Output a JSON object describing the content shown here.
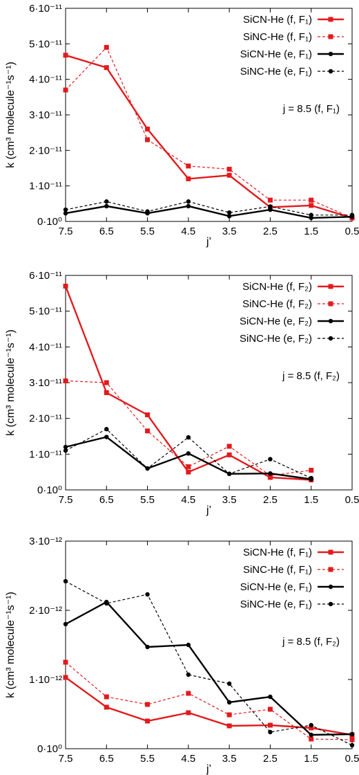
{
  "chart_data": [
    {
      "type": "line",
      "xlabel": "j’",
      "ylabel": "k (cm³ molecule⁻¹s⁻¹)",
      "x_ticks": [
        "7.5",
        "6.5",
        "5.5",
        "4.5",
        "3.5",
        "2.5",
        "1.5",
        "0.5"
      ],
      "y_ticks": [
        "0·10⁰",
        "1·10⁻¹¹",
        "2·10⁻¹¹",
        "3·10⁻¹¹",
        "4·10⁻¹¹",
        "5·10⁻¹¹",
        "6·10⁻¹¹"
      ],
      "ylim": [
        0,
        6
      ],
      "x_order": [
        7.5,
        6.5,
        5.5,
        4.5,
        3.5,
        2.5,
        1.5,
        0.5
      ],
      "annotation": "j = 8.5 (f, F₁)",
      "legend_placement": "top-right",
      "series": [
        {
          "name": "SiCN-He (f, F₁)",
          "color": "#e31a1c",
          "dash": false,
          "marker": "square",
          "x": [
            7.5,
            6.5,
            5.5,
            4.5,
            3.5,
            2.5,
            1.5,
            0.5
          ],
          "y": [
            4.68,
            4.33,
            2.6,
            1.2,
            1.3,
            0.4,
            0.45,
            0.1
          ]
        },
        {
          "name": "SiNC-He (f, F₁)",
          "color": "#e31a1c",
          "dash": true,
          "marker": "square",
          "x": [
            7.5,
            6.5,
            5.5,
            4.5,
            3.5,
            2.5,
            1.5,
            0.5
          ],
          "y": [
            3.7,
            4.9,
            2.3,
            1.56,
            1.47,
            0.6,
            0.6,
            0.1
          ]
        },
        {
          "name": "SiCN-He (e, F₁)",
          "color": "#000000",
          "dash": false,
          "marker": "circle",
          "x": [
            7.5,
            6.5,
            5.5,
            4.5,
            3.5,
            2.5,
            1.5,
            0.5
          ],
          "y": [
            0.23,
            0.43,
            0.23,
            0.43,
            0.15,
            0.33,
            0.1,
            0.13
          ]
        },
        {
          "name": "SiNC-He (e, F₁)",
          "color": "#000000",
          "dash": true,
          "marker": "circle",
          "x": [
            7.5,
            6.5,
            5.5,
            4.5,
            3.5,
            2.5,
            1.5,
            0.5
          ],
          "y": [
            0.33,
            0.56,
            0.28,
            0.56,
            0.25,
            0.42,
            0.18,
            0.18
          ]
        }
      ]
    },
    {
      "type": "line",
      "xlabel": "j’",
      "ylabel": "k (cm³ molecule⁻¹s⁻¹)",
      "x_ticks": [
        "7.5",
        "6.5",
        "5.5",
        "4.5",
        "3.5",
        "2.5",
        "1.5",
        "0.5"
      ],
      "y_ticks": [
        "0·10⁰",
        "1·10⁻¹¹",
        "2·10⁻¹¹",
        "3·10⁻¹¹",
        "4·10⁻¹¹",
        "5·10⁻¹¹",
        "6·10⁻¹¹"
      ],
      "ylim": [
        0,
        6
      ],
      "x_order": [
        7.5,
        6.5,
        5.5,
        4.5,
        3.5,
        2.5,
        1.5,
        0.5
      ],
      "annotation": "j = 8.5 (f, F₂)",
      "legend_placement": "top-right",
      "series": [
        {
          "name": "SiCN-He (f, F₂)",
          "color": "#e31a1c",
          "dash": false,
          "marker": "square",
          "x": [
            7.5,
            6.5,
            5.5,
            4.5,
            3.5,
            2.5,
            1.5
          ],
          "y": [
            5.7,
            2.72,
            2.1,
            0.5,
            0.98,
            0.35,
            0.28
          ]
        },
        {
          "name": "SiNC-He (f, F₂)",
          "color": "#e31a1c",
          "dash": true,
          "marker": "square",
          "x": [
            7.5,
            6.5,
            5.5,
            4.5,
            3.5,
            2.5,
            1.5
          ],
          "y": [
            3.05,
            3.0,
            1.65,
            0.65,
            1.22,
            0.4,
            0.55
          ]
        },
        {
          "name": "SiCN-He (e, F₂)",
          "color": "#000000",
          "dash": false,
          "marker": "circle",
          "x": [
            7.5,
            6.5,
            5.5,
            4.5,
            3.5,
            2.5,
            1.5
          ],
          "y": [
            1.2,
            1.48,
            0.6,
            1.02,
            0.45,
            0.46,
            0.3
          ]
        },
        {
          "name": "SiNC-He (e, F₂)",
          "color": "#000000",
          "dash": true,
          "marker": "circle",
          "x": [
            7.5,
            6.5,
            5.5,
            4.5,
            3.5,
            2.5,
            1.5
          ],
          "y": [
            1.1,
            1.7,
            0.6,
            1.47,
            0.45,
            0.86,
            0.33
          ]
        }
      ]
    },
    {
      "type": "line",
      "xlabel": "j’",
      "ylabel": "k (cm³ molecule⁻¹s⁻¹)",
      "x_ticks": [
        "7.5",
        "6.5",
        "5.5",
        "4.5",
        "3.5",
        "2.5",
        "1.5",
        "0.5"
      ],
      "y_ticks": [
        "0·10⁰",
        "1·10⁻¹²",
        "2·10⁻¹²",
        "3·10⁻¹²"
      ],
      "ylim": [
        0,
        3
      ],
      "x_order": [
        7.5,
        6.5,
        5.5,
        4.5,
        3.5,
        2.5,
        1.5,
        0.5
      ],
      "annotation": "j = 8.5 (f, F₂)",
      "legend_placement": "top-right",
      "series": [
        {
          "name": "SiCN-He (f, F₁)",
          "color": "#e31a1c",
          "dash": false,
          "marker": "square",
          "x": [
            7.5,
            6.5,
            5.5,
            4.5,
            3.5,
            2.5,
            1.5,
            0.5
          ],
          "y": [
            1.03,
            0.6,
            0.4,
            0.52,
            0.33,
            0.34,
            0.3,
            0.2
          ]
        },
        {
          "name": "SiNC-He (f, F₁)",
          "color": "#e31a1c",
          "dash": true,
          "marker": "square",
          "x": [
            7.5,
            6.5,
            5.5,
            4.5,
            3.5,
            2.5,
            1.5,
            0.5
          ],
          "y": [
            1.25,
            0.75,
            0.64,
            0.8,
            0.49,
            0.57,
            0.14,
            0.13
          ]
        },
        {
          "name": "SiCN-He (e, F₁)",
          "color": "#000000",
          "dash": false,
          "marker": "circle",
          "x": [
            7.5,
            6.5,
            5.5,
            4.5,
            3.5,
            2.5,
            1.5,
            0.5
          ],
          "y": [
            1.8,
            2.12,
            1.47,
            1.5,
            0.67,
            0.75,
            0.2,
            0.21
          ]
        },
        {
          "name": "SiNC-He (e, F₁)",
          "color": "#000000",
          "dash": true,
          "marker": "circle",
          "x": [
            7.5,
            6.5,
            5.5,
            4.5,
            3.5,
            2.5,
            1.5,
            0.5
          ],
          "y": [
            2.42,
            2.1,
            2.23,
            1.07,
            0.94,
            0.24,
            0.34,
            0.05
          ]
        }
      ]
    }
  ]
}
